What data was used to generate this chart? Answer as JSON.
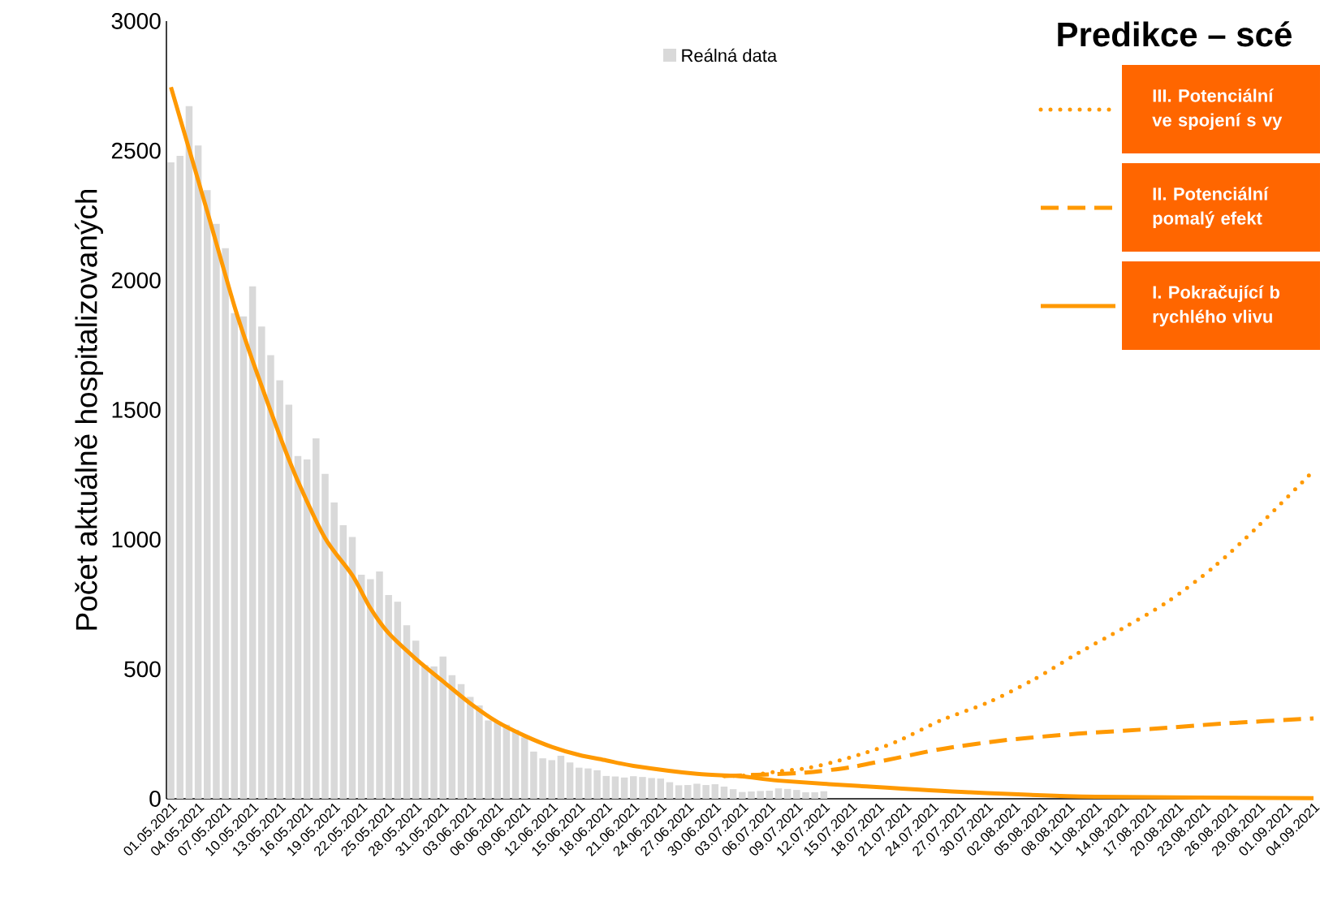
{
  "chart_data": {
    "type": "bar",
    "title": "Predikce – scé",
    "ylabel": "Počet aktuálně hospitalizovaných",
    "xlim": [
      "2021-04-30T12:00",
      "2021-09-04"
    ],
    "ylim": [
      0,
      3000
    ],
    "yticks": [
      0,
      500,
      1000,
      1500,
      2000,
      2500,
      3000
    ],
    "xticks": [
      {
        "value": "2021-05-01",
        "label": "01.05.2021"
      },
      {
        "value": "2021-05-04",
        "label": "04.05.2021"
      },
      {
        "value": "2021-05-07",
        "label": "07.05.2021"
      },
      {
        "value": "2021-05-10",
        "label": "10.05.2021"
      },
      {
        "value": "2021-05-13",
        "label": "13.05.2021"
      },
      {
        "value": "2021-05-16",
        "label": "16.05.2021"
      },
      {
        "value": "2021-05-19",
        "label": "19.05.2021"
      },
      {
        "value": "2021-05-22",
        "label": "22.05.2021"
      },
      {
        "value": "2021-05-25",
        "label": "25.05.2021"
      },
      {
        "value": "2021-05-28",
        "label": "28.05.2021"
      },
      {
        "value": "2021-05-31",
        "label": "31.05.2021"
      },
      {
        "value": "2021-06-03",
        "label": "03.06.2021"
      },
      {
        "value": "2021-06-06",
        "label": "06.06.2021"
      },
      {
        "value": "2021-06-09",
        "label": "09.06.2021"
      },
      {
        "value": "2021-06-12",
        "label": "12.06.2021"
      },
      {
        "value": "2021-06-15",
        "label": "15.06.2021"
      },
      {
        "value": "2021-06-18",
        "label": "18.06.2021"
      },
      {
        "value": "2021-06-21",
        "label": "21.06.2021"
      },
      {
        "value": "2021-06-24",
        "label": "24.06.2021"
      },
      {
        "value": "2021-06-27",
        "label": "27.06.2021"
      },
      {
        "value": "2021-06-30",
        "label": "30.06.2021"
      },
      {
        "value": "2021-07-03",
        "label": "03.07.2021"
      },
      {
        "value": "2021-07-06",
        "label": "06.07.2021"
      },
      {
        "value": "2021-07-09",
        "label": "09.07.2021"
      },
      {
        "value": "2021-07-12",
        "label": "12.07.2021"
      },
      {
        "value": "2021-07-15",
        "label": "15.07.2021"
      },
      {
        "value": "2021-07-18",
        "label": "18.07.2021"
      },
      {
        "value": "2021-07-21",
        "label": "21.07.2021"
      },
      {
        "value": "2021-07-24",
        "label": "24.07.2021"
      },
      {
        "value": "2021-07-27",
        "label": "27.07.2021"
      },
      {
        "value": "2021-07-30",
        "label": "30.07.2021"
      },
      {
        "value": "2021-08-02",
        "label": "02.08.2021"
      },
      {
        "value": "2021-08-05",
        "label": "05.08.2021"
      },
      {
        "value": "2021-08-08",
        "label": "08.08.2021"
      },
      {
        "value": "2021-08-11",
        "label": "11.08.2021"
      },
      {
        "value": "2021-08-14",
        "label": "14.08.2021"
      },
      {
        "value": "2021-08-17",
        "label": "17.08.2021"
      },
      {
        "value": "2021-08-20",
        "label": "20.08.2021"
      },
      {
        "value": "2021-08-23",
        "label": "23.08.2021"
      },
      {
        "value": "2021-08-26",
        "label": "26.08.2021"
      },
      {
        "value": "2021-08-29",
        "label": "29.08.2021"
      },
      {
        "value": "2021-09-01",
        "label": "01.09.2021"
      },
      {
        "value": "2021-09-04",
        "label": "04.09.2021"
      }
    ],
    "legend": "top right",
    "series": [
      {
        "name": "Reálná data",
        "color": "#d9d9d9",
        "x": [
          "2021-05-01",
          "2021-05-02",
          "2021-05-03",
          "2021-05-04",
          "2021-05-05",
          "2021-05-06",
          "2021-05-07",
          "2021-05-08",
          "2021-05-09",
          "2021-05-10",
          "2021-05-11",
          "2021-05-12",
          "2021-05-13",
          "2021-05-14",
          "2021-05-15",
          "2021-05-16",
          "2021-05-17",
          "2021-05-18",
          "2021-05-19",
          "2021-05-20",
          "2021-05-21",
          "2021-05-22",
          "2021-05-23",
          "2021-05-24",
          "2021-05-25",
          "2021-05-26",
          "2021-05-27",
          "2021-05-28",
          "2021-05-29",
          "2021-05-30",
          "2021-05-31",
          "2021-06-01",
          "2021-06-02",
          "2021-06-03",
          "2021-06-04",
          "2021-06-05",
          "2021-06-06",
          "2021-06-07",
          "2021-06-08",
          "2021-06-09",
          "2021-06-10",
          "2021-06-11",
          "2021-06-12",
          "2021-06-13",
          "2021-06-14",
          "2021-06-15",
          "2021-06-16",
          "2021-06-17",
          "2021-06-18",
          "2021-06-19",
          "2021-06-20",
          "2021-06-21",
          "2021-06-22",
          "2021-06-23",
          "2021-06-24",
          "2021-06-25",
          "2021-06-26",
          "2021-06-27",
          "2021-06-28",
          "2021-06-29",
          "2021-06-30",
          "2021-07-01",
          "2021-07-02",
          "2021-07-03",
          "2021-07-04",
          "2021-07-05",
          "2021-07-06",
          "2021-07-07",
          "2021-07-08",
          "2021-07-09",
          "2021-07-10",
          "2021-07-11",
          "2021-07-12"
        ],
        "values": [
          2455,
          2480,
          2672,
          2520,
          2348,
          2218,
          2124,
          1873,
          1861,
          1977,
          1822,
          1711,
          1614,
          1520,
          1322,
          1309,
          1390,
          1253,
          1143,
          1055,
          1010,
          864,
          847,
          877,
          786,
          760,
          669,
          610,
          516,
          510,
          549,
          477,
          442,
          393,
          360,
          302,
          295,
          286,
          266,
          237,
          182,
          156,
          149,
          166,
          140,
          120,
          117,
          110,
          88,
          86,
          82,
          87,
          84,
          80,
          78,
          64,
          52,
          53,
          58,
          53,
          56,
          47,
          37,
          26,
          28,
          30,
          31,
          40,
          38,
          34,
          25,
          25,
          29
        ]
      },
      {
        "name": "I. Pokračující b rychlého vlivu",
        "type": "line",
        "line_style": "solid",
        "color": "#ff9900",
        "x": [
          "2021-05-01",
          "2021-05-05",
          "2021-05-08",
          "2021-05-10",
          "2021-05-13",
          "2021-05-15",
          "2021-05-18",
          "2021-05-21",
          "2021-05-23",
          "2021-05-25",
          "2021-05-28",
          "2021-05-31",
          "2021-06-03",
          "2021-06-06",
          "2021-06-09",
          "2021-06-12",
          "2021-06-15",
          "2021-06-18",
          "2021-06-21",
          "2021-06-28",
          "2021-07-03",
          "2021-07-07",
          "2021-07-16",
          "2021-07-28",
          "2021-08-11",
          "2021-09-04"
        ],
        "values": [
          2745,
          2266,
          1900,
          1690,
          1400,
          1225,
          1005,
          862,
          735,
          639,
          540,
          453,
          368,
          296,
          243,
          200,
          169,
          148,
          127,
          96,
          86,
          70,
          49,
          25,
          8,
          2
        ]
      },
      {
        "name": "II. Potenciální pomalý efekt",
        "type": "line",
        "line_style": "dashed",
        "color": "#ff9900",
        "x": [
          "2021-07-01",
          "2021-07-06",
          "2021-07-10",
          "2021-07-15",
          "2021-07-20",
          "2021-07-25",
          "2021-08-01",
          "2021-08-09",
          "2021-08-17",
          "2021-08-25",
          "2021-09-04"
        ],
        "values": [
          88,
          94,
          101,
          122,
          157,
          192,
          226,
          251,
          269,
          290,
          310
        ]
      },
      {
        "name": "III. Potenciální ve spojení s vy",
        "type": "line",
        "line_style": "dotted",
        "color": "#ff9900",
        "x": [
          "2021-07-01",
          "2021-07-04",
          "2021-07-07",
          "2021-07-10",
          "2021-07-13",
          "2021-07-16",
          "2021-07-20",
          "2021-07-25",
          "2021-07-30",
          "2021-08-04",
          "2021-08-09",
          "2021-08-14",
          "2021-08-19",
          "2021-08-24",
          "2021-08-29",
          "2021-09-04"
        ],
        "values": [
          88,
          91,
          106,
          117,
          141,
          171,
          220,
          304,
          370,
          457,
          561,
          658,
          762,
          894,
          1055,
          1265
        ]
      }
    ]
  }
}
